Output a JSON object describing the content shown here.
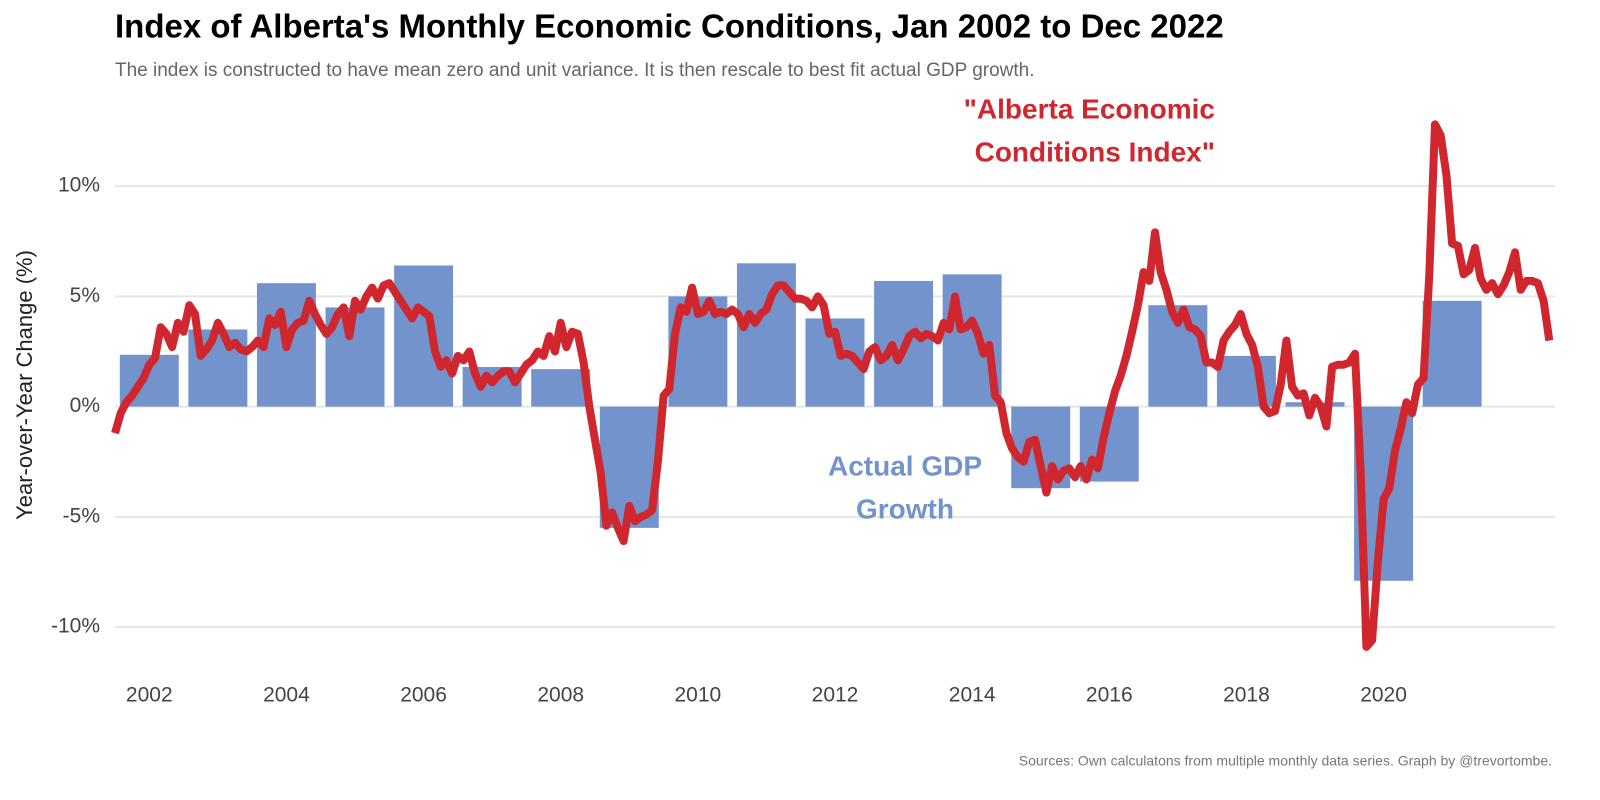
{
  "chart_data": {
    "type": "bar+line",
    "title": "Index of Alberta's Monthly Economic Conditions, Jan 2002 to Dec 2022",
    "subtitle": "The index is constructed to have mean zero and unit variance. It is then rescale to best fit actual GDP growth.",
    "ylabel": "Year-over-Year Change (%)",
    "caption": "Sources: Own calculatons from multiple monthly data series. Graph by @trevortombe.",
    "xlim": [
      2002,
      2023
    ],
    "xticks": [
      2002,
      2004,
      2006,
      2008,
      2010,
      2012,
      2014,
      2016,
      2018,
      2020
    ],
    "ylim": [
      -12.4,
      13
    ],
    "yticks": [
      {
        "value": -10,
        "label": "-10%"
      },
      {
        "value": -5,
        "label": "-5%"
      },
      {
        "value": 0,
        "label": "0%"
      },
      {
        "value": 5,
        "label": "5%"
      },
      {
        "value": 10,
        "label": "10%"
      }
    ],
    "grid": true,
    "series": [
      {
        "name": "Actual GDP Growth",
        "label_lines": [
          "Actual GDP",
          "Growth"
        ],
        "type": "bar",
        "color": "#7393cc",
        "x": [
          2002,
          2003,
          2004,
          2005,
          2006,
          2007,
          2008,
          2009,
          2010,
          2011,
          2012,
          2013,
          2014,
          2015,
          2016,
          2017,
          2018,
          2019,
          2020,
          2021
        ],
        "values": [
          2.35,
          3.5,
          5.6,
          4.5,
          6.4,
          1.8,
          1.7,
          -5.5,
          5.0,
          6.5,
          4.0,
          5.7,
          6.0,
          -3.7,
          -3.4,
          4.6,
          2.3,
          0.2,
          -7.9,
          4.8
        ]
      },
      {
        "name": "\"Alberta Economic Conditions Index\"",
        "label_lines": [
          "\"Alberta Economic",
          "Conditions Index\""
        ],
        "type": "line",
        "color": "#d0272f",
        "frequency": "monthly",
        "values": [
          -1.2,
          -0.3,
          0.2,
          0.5,
          0.9,
          1.3,
          1.9,
          2.2,
          3.6,
          3.3,
          2.7,
          3.8,
          3.4,
          4.6,
          4.2,
          2.3,
          2.6,
          3.0,
          3.8,
          3.3,
          2.7,
          2.9,
          2.6,
          2.5,
          2.7,
          3.0,
          2.7,
          4.0,
          3.7,
          4.3,
          2.7,
          3.5,
          3.8,
          3.9,
          4.8,
          4.2,
          3.7,
          3.3,
          3.6,
          4.2,
          4.5,
          3.2,
          4.8,
          4.4,
          5.0,
          5.4,
          4.9,
          5.5,
          5.6,
          5.2,
          4.8,
          4.4,
          4.0,
          4.5,
          4.3,
          4.1,
          2.5,
          1.8,
          2.1,
          1.5,
          2.3,
          2.1,
          2.5,
          1.5,
          0.9,
          1.4,
          1.1,
          1.4,
          1.6,
          1.6,
          1.1,
          1.5,
          1.9,
          2.1,
          2.5,
          2.3,
          3.2,
          2.5,
          3.8,
          2.7,
          3.4,
          3.3,
          2.0,
          0.0,
          -1.5,
          -3.0,
          -5.4,
          -4.8,
          -5.5,
          -6.1,
          -4.5,
          -5.2,
          -5.0,
          -4.9,
          -4.7,
          -2.5,
          0.5,
          0.8,
          3.3,
          4.5,
          4.3,
          5.4,
          4.2,
          4.3,
          4.8,
          4.2,
          4.3,
          4.2,
          4.4,
          4.2,
          3.6,
          4.2,
          3.8,
          4.2,
          4.4,
          5.1,
          5.5,
          5.5,
          5.2,
          4.9,
          4.9,
          4.8,
          4.5,
          5.0,
          4.6,
          3.3,
          3.4,
          2.3,
          2.4,
          2.3,
          2.0,
          1.7,
          2.5,
          2.7,
          2.1,
          2.3,
          2.8,
          2.1,
          2.6,
          3.2,
          3.4,
          3.1,
          3.3,
          3.2,
          3.0,
          3.8,
          3.5,
          5.0,
          3.5,
          3.6,
          3.9,
          3.3,
          2.4,
          2.8,
          0.5,
          0.2,
          -1.2,
          -1.9,
          -2.3,
          -2.5,
          -1.6,
          -1.5,
          -2.7,
          -3.9,
          -2.7,
          -3.3,
          -2.9,
          -2.8,
          -3.2,
          -2.7,
          -3.3,
          -2.4,
          -2.8,
          -1.4,
          -0.3,
          0.7,
          1.4,
          2.3,
          3.4,
          4.6,
          6.1,
          5.7,
          7.9,
          6.1,
          5.3,
          4.3,
          3.8,
          4.4,
          3.6,
          3.5,
          3.2,
          2.0,
          2.0,
          1.8,
          3.0,
          3.4,
          3.7,
          4.2,
          3.3,
          2.8,
          1.8,
          0.0,
          -0.3,
          -0.2,
          1.0,
          3.0,
          0.9,
          0.5,
          0.6,
          -0.4,
          0.4,
          0.0,
          -0.9,
          1.8,
          1.9,
          1.9,
          2.0,
          2.4,
          -3.0,
          -10.9,
          -10.6,
          -7.0,
          -4.2,
          -3.7,
          -2.0,
          -1.0,
          0.2,
          -0.3,
          1.0,
          1.3,
          6.0,
          12.8,
          12.3,
          10.5,
          7.4,
          7.3,
          6.0,
          6.2,
          7.2,
          5.8,
          5.3,
          5.6,
          5.1,
          5.5,
          6.1,
          7.0,
          5.3,
          5.7,
          5.7,
          5.6,
          4.8,
          3.0
        ]
      }
    ]
  }
}
